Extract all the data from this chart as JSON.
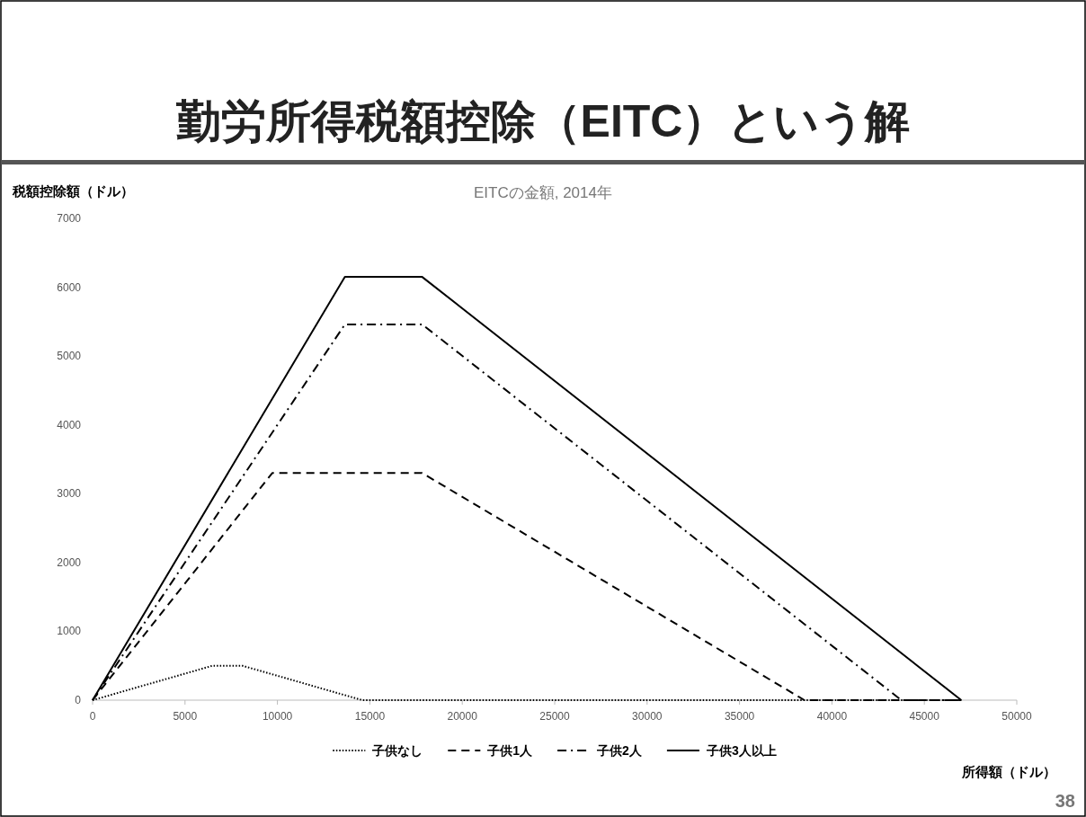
{
  "chart_data": {
    "type": "line",
    "title": "勤労所得税額控除（EITC）という解",
    "subtitle": "EITCの金額, 2014年",
    "xlabel": "所得額（ドル）",
    "ylabel": "税額控除額（ドル）",
    "annotations": [
      "38"
    ],
    "xlim": [
      0,
      50000
    ],
    "ylim": [
      0,
      7000
    ],
    "xticks": [
      0,
      5000,
      10000,
      15000,
      20000,
      25000,
      30000,
      35000,
      40000,
      45000,
      50000
    ],
    "yticks": [
      0,
      1000,
      2000,
      3000,
      4000,
      5000,
      6000,
      7000
    ],
    "legend": "bottom",
    "series": [
      {
        "name": "子供なし",
        "color": "#000000",
        "line_style": "dotted",
        "x": [
          0,
          6480,
          8110,
          14590,
          46997
        ],
        "values": [
          0,
          500,
          500,
          0,
          0
        ]
      },
      {
        "name": "子供1人",
        "color": "#000000",
        "line_style": "dashed",
        "x": [
          0,
          9720,
          17830,
          38511,
          46997
        ],
        "values": [
          0,
          3300,
          3300,
          0,
          0
        ]
      },
      {
        "name": "子供2人",
        "color": "#000000",
        "line_style": "dashdot",
        "x": [
          0,
          13650,
          17830,
          43756,
          46997
        ],
        "values": [
          0,
          5460,
          5460,
          0,
          0
        ]
      },
      {
        "name": "子供3人以上",
        "color": "#000000",
        "line_style": "solid",
        "x": [
          0,
          13650,
          17830,
          46997
        ],
        "values": [
          0,
          6150,
          6150,
          0
        ]
      }
    ]
  }
}
